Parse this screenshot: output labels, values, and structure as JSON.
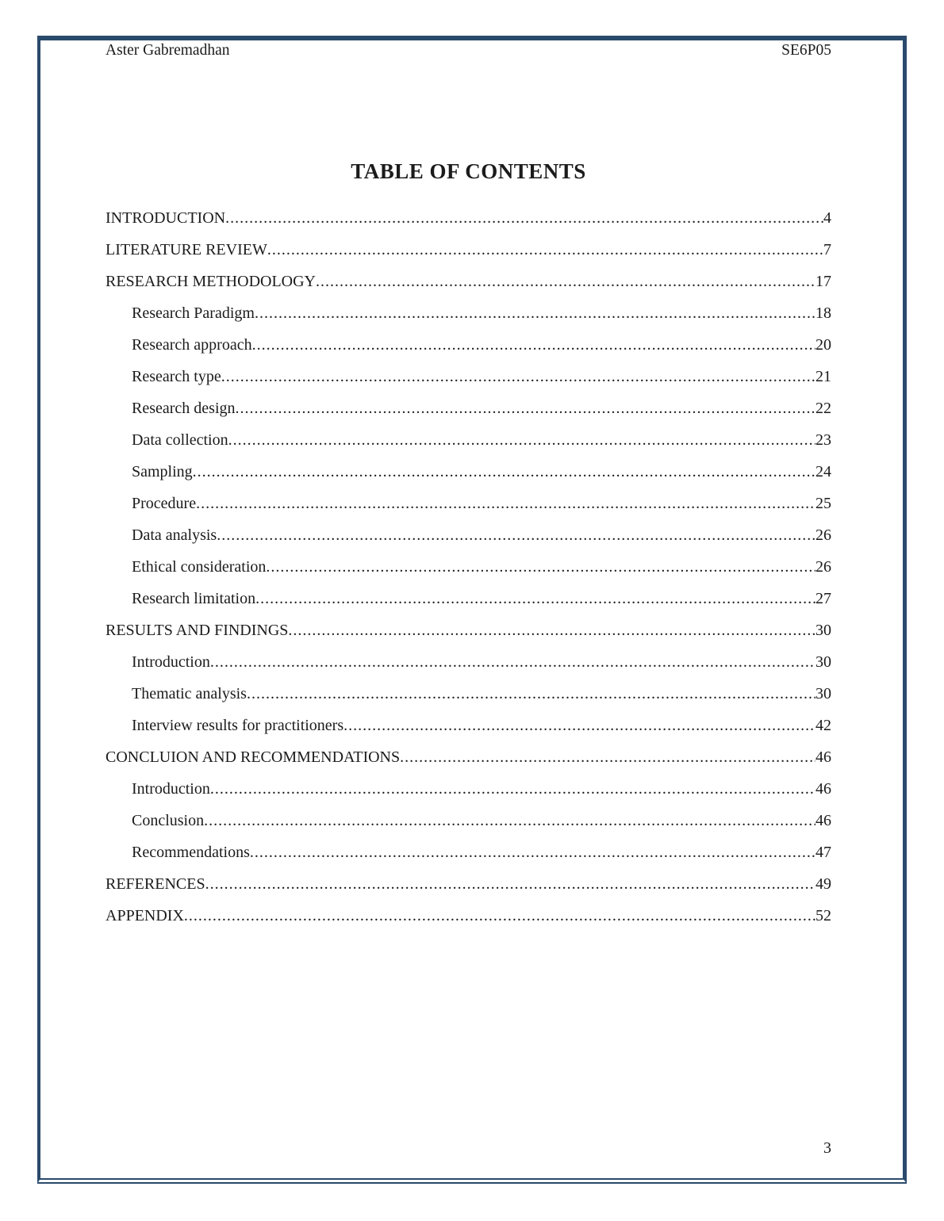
{
  "colors": {
    "border": "#2a4a6b",
    "text": "#1b1b1b",
    "background": "#ffffff"
  },
  "page": {
    "header": {
      "author": "Aster Gabremadhan",
      "course_code": "SE6P05"
    },
    "title": "TABLE OF CONTENTS",
    "toc": {
      "entries": [
        {
          "label": "INTRODUCTION",
          "page": "4",
          "level": 0
        },
        {
          "label": "LITERATURE REVIEW",
          "page": "7",
          "level": 0
        },
        {
          "label": "RESEARCH METHODOLOGY",
          "page": "17",
          "level": 0
        },
        {
          "label": "Research Paradigm",
          "page": "18",
          "level": 1
        },
        {
          "label": "Research approach",
          "page": "20",
          "level": 1
        },
        {
          "label": "Research type",
          "page": "21",
          "level": 1
        },
        {
          "label": "Research design",
          "page": "22",
          "level": 1
        },
        {
          "label": "Data collection",
          "page": "23",
          "level": 1
        },
        {
          "label": "Sampling",
          "page": "24",
          "level": 1
        },
        {
          "label": "Procedure",
          "page": "25",
          "level": 1
        },
        {
          "label": "Data analysis",
          "page": "26",
          "level": 1
        },
        {
          "label": "Ethical consideration",
          "page": "26",
          "level": 1
        },
        {
          "label": "Research limitation",
          "page": "27",
          "level": 1
        },
        {
          "label": "RESULTS AND FINDINGS",
          "page": "30",
          "level": 0
        },
        {
          "label": "Introduction",
          "page": "30",
          "level": 1
        },
        {
          "label": "Thematic analysis",
          "page": "30",
          "level": 1
        },
        {
          "label": "Interview results for practitioners",
          "page": "42",
          "level": 1
        },
        {
          "label": "CONCLUION AND RECOMMENDATIONS",
          "page": "46",
          "level": 0
        },
        {
          "label": "Introduction",
          "page": "46",
          "level": 1
        },
        {
          "label": "Conclusion",
          "page": "46",
          "level": 1
        },
        {
          "label": "Recommendations",
          "page": "47",
          "level": 1
        },
        {
          "label": "REFERENCES",
          "page": "49",
          "level": 0
        },
        {
          "label": "APPENDIX",
          "page": "52",
          "level": 0
        }
      ]
    },
    "footer": {
      "page_number": "3"
    }
  }
}
